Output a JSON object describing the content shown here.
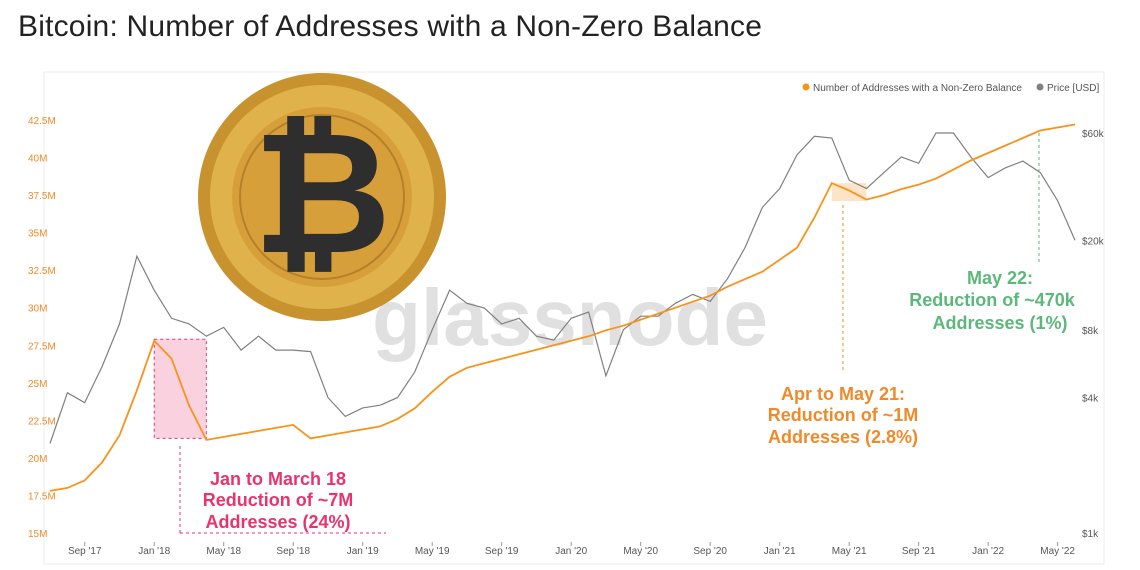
{
  "title": "Bitcoin: Number of Addresses with a Non-Zero Balance",
  "watermark": "glassnode",
  "legend": {
    "addresses": "Number of Addresses with a Non-Zero Balance",
    "price": "Price [USD]"
  },
  "colors": {
    "addresses": "#f7931a",
    "price": "#808080",
    "pink": "#e8336d",
    "green": "#5cb87a",
    "orange_text": "#f08a28"
  },
  "annotations": {
    "jan18": [
      "Jan to March 18",
      "Reduction of ~7M",
      "Addresses (24%)"
    ],
    "may21": [
      "Apr to May 21:",
      "Reduction of ~1M",
      "Addresses (2.8%)"
    ],
    "may22": [
      "May 22:",
      "Reduction of ~470k",
      "Addresses (1%)"
    ]
  },
  "chart_data": {
    "type": "line",
    "legend_position": "top-right",
    "x_ticks": [
      "Sep '17",
      "Jan '18",
      "May '18",
      "Sep '18",
      "Jan '19",
      "May '19",
      "Sep '19",
      "Jan '20",
      "May '20",
      "Sep '20",
      "Jan '21",
      "May '21",
      "Sep '21",
      "Jan '22",
      "May '22"
    ],
    "y_left_ticks": [
      "15M",
      "17.5M",
      "20M",
      "22.5M",
      "25M",
      "27.5M",
      "30M",
      "32.5M",
      "35M",
      "37.5M",
      "40M",
      "42.5M"
    ],
    "y_left_range": [
      15,
      42.5
    ],
    "y_right_ticks": [
      "$1k",
      "$4k",
      "$8k",
      "$20k",
      "$60k"
    ],
    "y_right_scale": "log",
    "x_range": [
      "2017-07",
      "2022-06"
    ],
    "series": [
      {
        "name": "Number of Addresses with a Non-Zero Balance",
        "axis": "left",
        "points": [
          [
            "2017-07",
            17.8
          ],
          [
            "2017-08",
            18.0
          ],
          [
            "2017-09",
            18.5
          ],
          [
            "2017-10",
            19.7
          ],
          [
            "2017-11",
            21.5
          ],
          [
            "2017-12",
            24.5
          ],
          [
            "2018-01",
            27.8
          ],
          [
            "2018-02",
            26.6
          ],
          [
            "2018-03",
            23.5
          ],
          [
            "2018-04",
            21.2
          ],
          [
            "2018-05",
            21.4
          ],
          [
            "2018-06",
            21.6
          ],
          [
            "2018-07",
            21.8
          ],
          [
            "2018-08",
            22.0
          ],
          [
            "2018-09",
            22.2
          ],
          [
            "2018-10",
            21.3
          ],
          [
            "2018-11",
            21.5
          ],
          [
            "2018-12",
            21.7
          ],
          [
            "2019-01",
            21.9
          ],
          [
            "2019-02",
            22.1
          ],
          [
            "2019-03",
            22.6
          ],
          [
            "2019-04",
            23.3
          ],
          [
            "2019-05",
            24.4
          ],
          [
            "2019-06",
            25.4
          ],
          [
            "2019-07",
            26.0
          ],
          [
            "2019-08",
            26.3
          ],
          [
            "2019-09",
            26.6
          ],
          [
            "2019-10",
            26.9
          ],
          [
            "2019-11",
            27.2
          ],
          [
            "2019-12",
            27.5
          ],
          [
            "2020-01",
            27.8
          ],
          [
            "2020-02",
            28.1
          ],
          [
            "2020-03",
            28.5
          ],
          [
            "2020-04",
            28.8
          ],
          [
            "2020-05",
            29.2
          ],
          [
            "2020-06",
            29.6
          ],
          [
            "2020-07",
            30.0
          ],
          [
            "2020-08",
            30.4
          ],
          [
            "2020-09",
            30.8
          ],
          [
            "2020-10",
            31.4
          ],
          [
            "2020-11",
            31.9
          ],
          [
            "2020-12",
            32.4
          ],
          [
            "2021-01",
            33.2
          ],
          [
            "2021-02",
            34.0
          ],
          [
            "2021-03",
            36.0
          ],
          [
            "2021-04",
            38.3
          ],
          [
            "2021-05",
            37.8
          ],
          [
            "2021-06",
            37.2
          ],
          [
            "2021-07",
            37.5
          ],
          [
            "2021-08",
            37.9
          ],
          [
            "2021-09",
            38.2
          ],
          [
            "2021-10",
            38.6
          ],
          [
            "2021-11",
            39.2
          ],
          [
            "2021-12",
            39.8
          ],
          [
            "2022-01",
            40.3
          ],
          [
            "2022-02",
            40.8
          ],
          [
            "2022-03",
            41.3
          ],
          [
            "2022-04",
            41.8
          ],
          [
            "2022-05",
            42.0
          ],
          [
            "2022-06",
            42.2
          ]
        ]
      },
      {
        "name": "Price [USD]",
        "axis": "right",
        "points": [
          [
            "2017-07",
            2500
          ],
          [
            "2017-08",
            4200
          ],
          [
            "2017-09",
            3800
          ],
          [
            "2017-10",
            5500
          ],
          [
            "2017-11",
            8500
          ],
          [
            "2017-12",
            17000
          ],
          [
            "2018-01",
            12000
          ],
          [
            "2018-02",
            9000
          ],
          [
            "2018-03",
            8500
          ],
          [
            "2018-04",
            7500
          ],
          [
            "2018-05",
            8200
          ],
          [
            "2018-06",
            6500
          ],
          [
            "2018-07",
            7500
          ],
          [
            "2018-08",
            6500
          ],
          [
            "2018-09",
            6500
          ],
          [
            "2018-10",
            6400
          ],
          [
            "2018-11",
            4000
          ],
          [
            "2018-12",
            3300
          ],
          [
            "2019-01",
            3600
          ],
          [
            "2019-02",
            3700
          ],
          [
            "2019-03",
            4000
          ],
          [
            "2019-04",
            5200
          ],
          [
            "2019-05",
            8000
          ],
          [
            "2019-06",
            12000
          ],
          [
            "2019-07",
            10500
          ],
          [
            "2019-08",
            10000
          ],
          [
            "2019-09",
            8500
          ],
          [
            "2019-10",
            9000
          ],
          [
            "2019-11",
            7500
          ],
          [
            "2019-12",
            7200
          ],
          [
            "2020-01",
            9000
          ],
          [
            "2020-02",
            9600
          ],
          [
            "2020-03",
            5000
          ],
          [
            "2020-04",
            8000
          ],
          [
            "2020-05",
            9200
          ],
          [
            "2020-06",
            9200
          ],
          [
            "2020-07",
            10500
          ],
          [
            "2020-08",
            11500
          ],
          [
            "2020-09",
            10700
          ],
          [
            "2020-10",
            13500
          ],
          [
            "2020-11",
            18500
          ],
          [
            "2020-12",
            28000
          ],
          [
            "2021-01",
            34000
          ],
          [
            "2021-02",
            48000
          ],
          [
            "2021-03",
            58000
          ],
          [
            "2021-04",
            57000
          ],
          [
            "2021-05",
            37000
          ],
          [
            "2021-06",
            34000
          ],
          [
            "2021-07",
            40000
          ],
          [
            "2021-08",
            47000
          ],
          [
            "2021-09",
            44000
          ],
          [
            "2021-10",
            60000
          ],
          [
            "2021-11",
            60000
          ],
          [
            "2021-12",
            47000
          ],
          [
            "2022-01",
            38000
          ],
          [
            "2022-02",
            42000
          ],
          [
            "2022-03",
            45000
          ],
          [
            "2022-04",
            40000
          ],
          [
            "2022-05",
            30000
          ],
          [
            "2022-06",
            20000
          ]
        ]
      }
    ],
    "highlights": [
      {
        "from": "2018-01",
        "to": "2018-04",
        "color": "#e8336d"
      },
      {
        "from": "2021-04",
        "to": "2021-06",
        "color": "#f7931a"
      },
      {
        "from": "2022-05",
        "to": "2022-05",
        "color": "#5cb87a"
      }
    ]
  }
}
